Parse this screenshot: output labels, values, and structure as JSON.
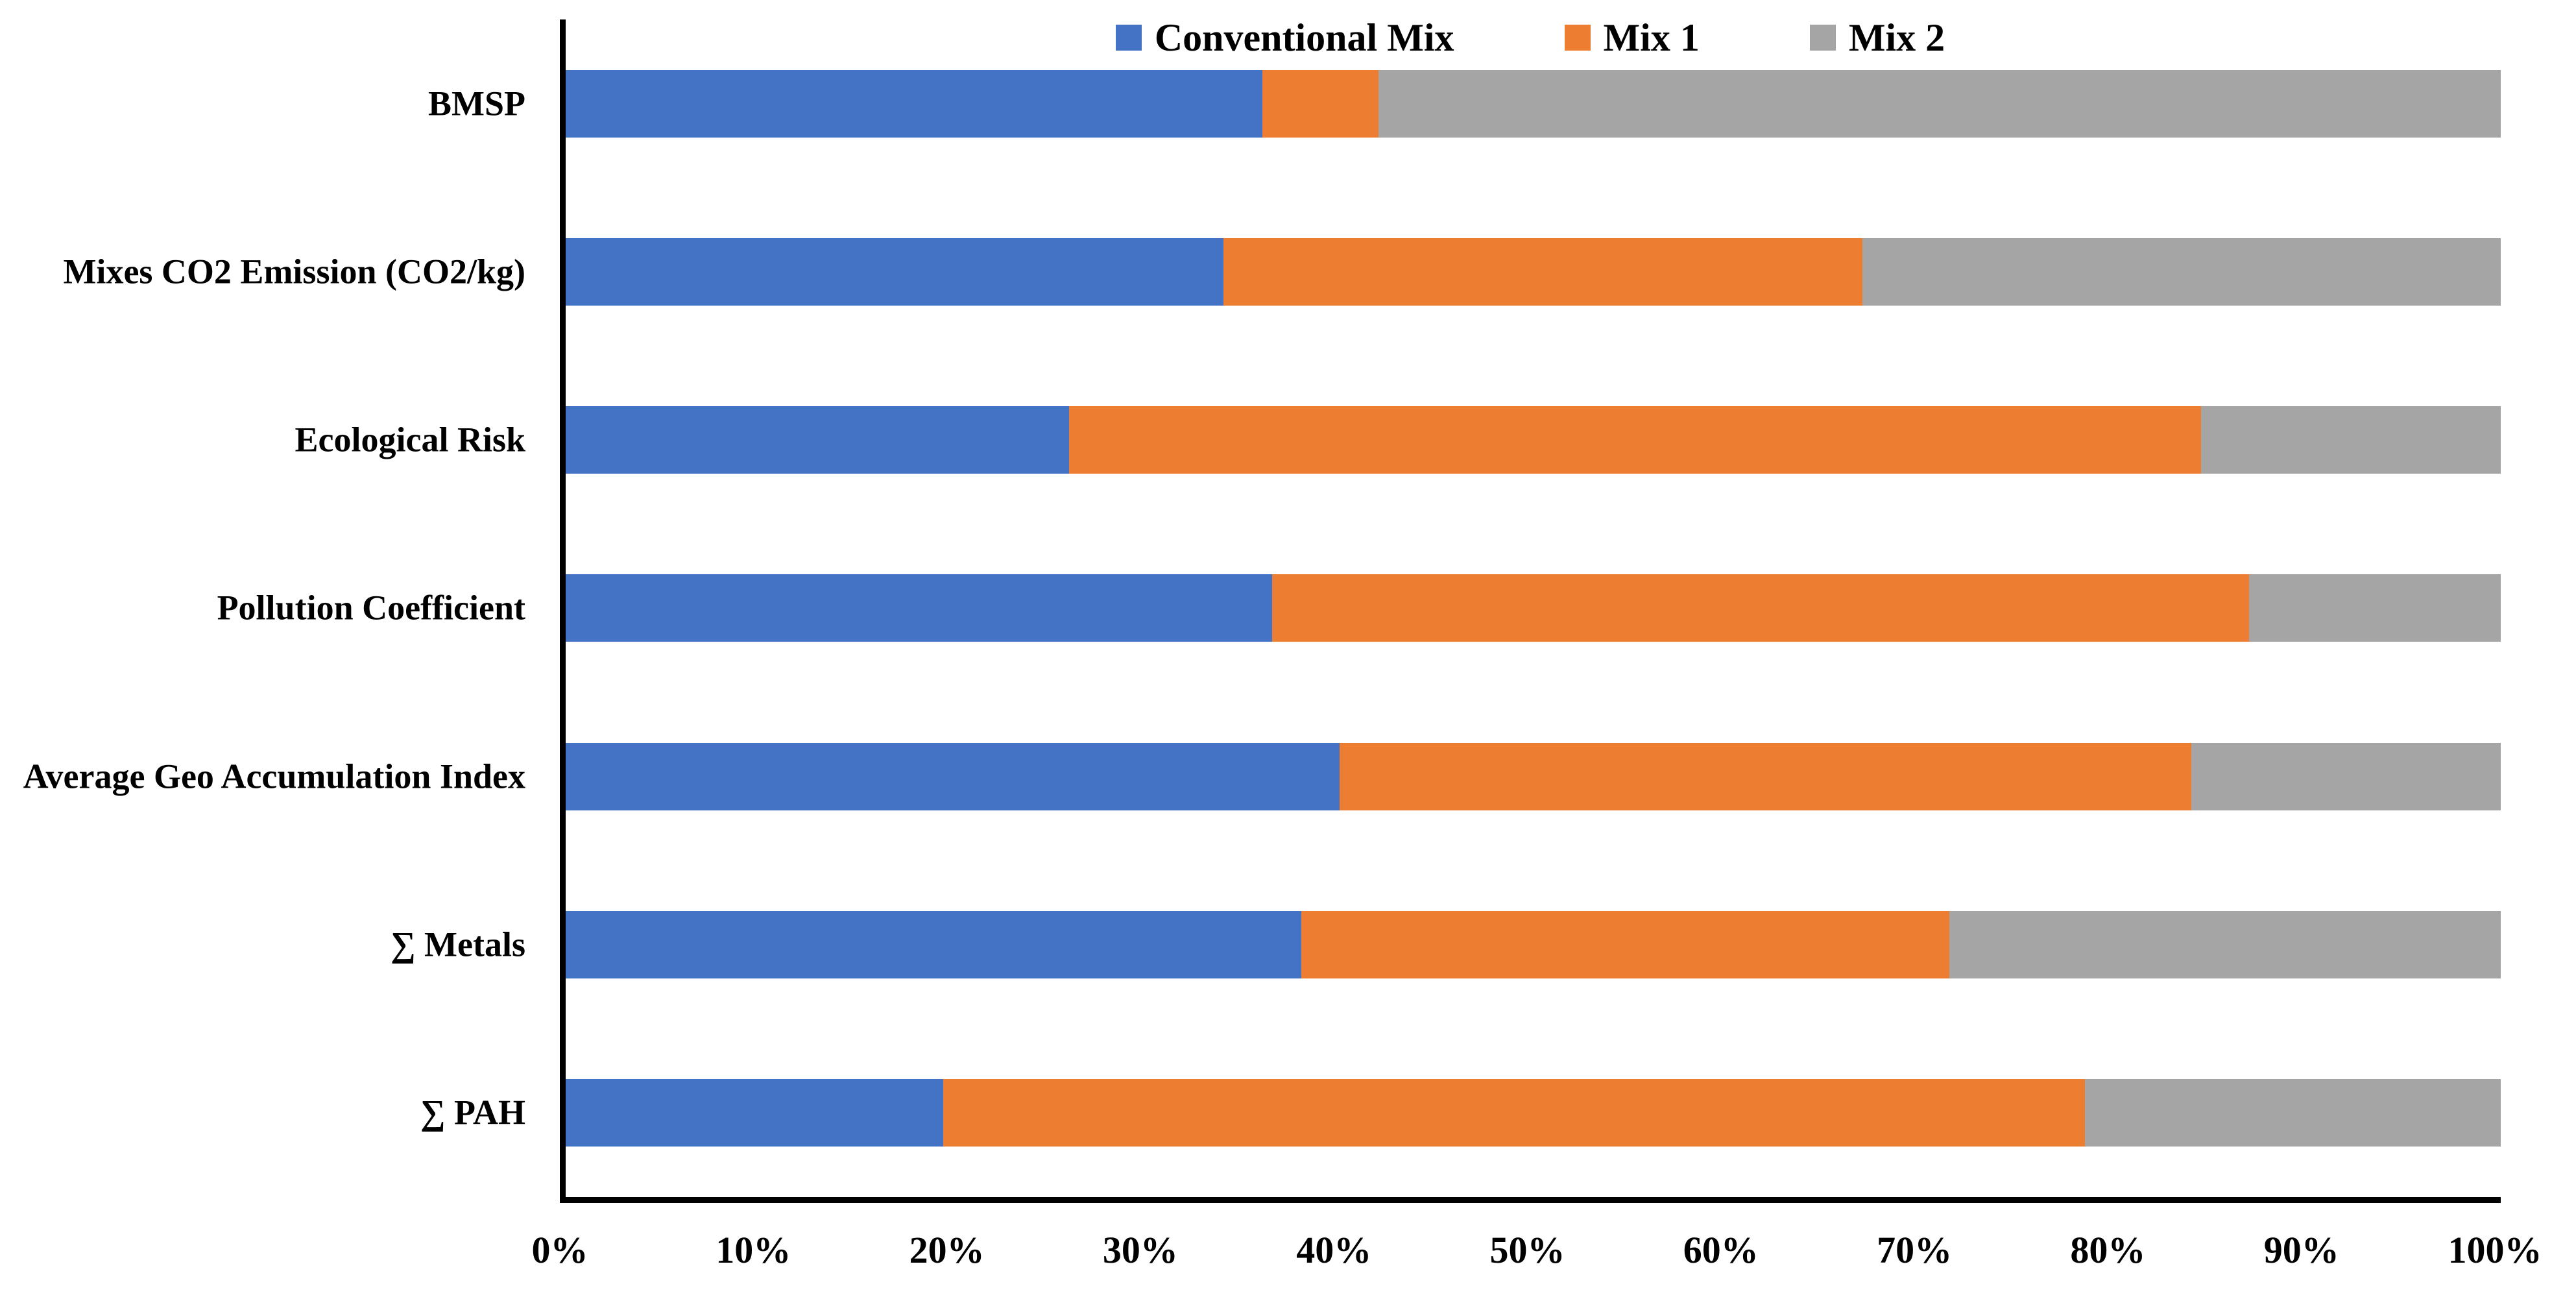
{
  "chart_data": {
    "type": "bar",
    "stacked": true,
    "orientation": "horizontal",
    "title": "",
    "xlabel": "",
    "ylabel": "",
    "grid": false,
    "legend_position": "top-center",
    "categories": [
      "BMSP",
      "Mixes CO2 Emission (CO2/kg)",
      "Ecological Risk",
      "Pollution Coefficient",
      "Average Geo Accumulation Index",
      "∑ Metals",
      "∑ PAH"
    ],
    "series": [
      {
        "name": "Conventional Mix",
        "color": "#4472C4",
        "values": [
          36,
          34,
          26,
          36.5,
          40,
          38,
          19.5
        ]
      },
      {
        "name": "Mix 1",
        "color": "#ED7D31",
        "values": [
          6,
          33,
          58.5,
          50.5,
          44,
          33.5,
          59
        ]
      },
      {
        "name": "Mix 2",
        "color": "#A5A5A5",
        "values": [
          58,
          33,
          15.5,
          13,
          16,
          28.5,
          21.5
        ]
      }
    ],
    "x_axis": {
      "min": 0,
      "max": 100,
      "unit": "%",
      "tick_labels": [
        "0%",
        "10%",
        "20%",
        "30%",
        "40%",
        "50%",
        "60%",
        "70%",
        "80%",
        "90%",
        "100%"
      ]
    },
    "axis_color": "#000000",
    "background_color": "#FFFFFF"
  }
}
